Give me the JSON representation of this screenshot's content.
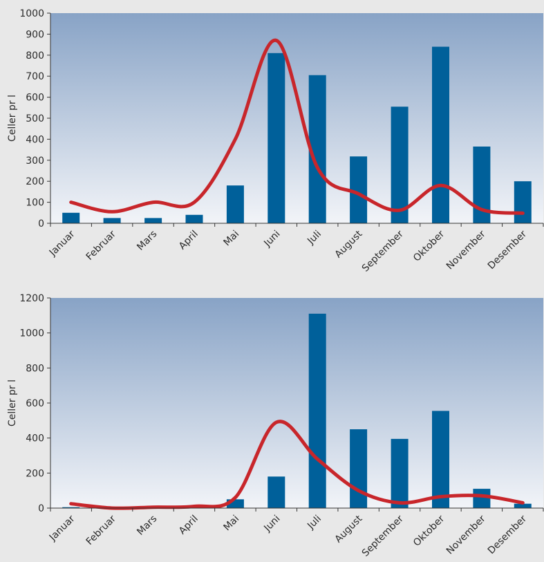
{
  "colors": {
    "bar": "#00609a",
    "line": "#c8262b",
    "panel_top": "#88a3c6",
    "panel_bottom": "#f2f4f8",
    "page_background": "#e8e8e8",
    "axis": "#333333"
  },
  "chart_data": [
    {
      "type": "bar",
      "title": "",
      "xlabel": "",
      "ylabel": "Celler pr l",
      "ylim": [
        0,
        1000
      ],
      "yticks": [
        0,
        100,
        200,
        300,
        400,
        500,
        600,
        700,
        800,
        900,
        1000
      ],
      "ytick_labels": [
        "0",
        "100",
        "200",
        "300",
        "400",
        "500",
        "600",
        "700",
        "800",
        "900",
        "1000"
      ],
      "categories": [
        "Januar",
        "Februar",
        "Mars",
        "April",
        "Mai",
        "Juni",
        "Juli",
        "August",
        "September",
        "Oktober",
        "November",
        "Desember"
      ],
      "grid": false,
      "legend": "none",
      "series": [
        {
          "type": "bar",
          "values": [
            50,
            25,
            25,
            40,
            180,
            810,
            705,
            318,
            555,
            840,
            365,
            200
          ]
        },
        {
          "type": "line",
          "smooth": true,
          "values": [
            100,
            55,
            100,
            100,
            400,
            870,
            265,
            140,
            62,
            180,
            65,
            48
          ]
        }
      ]
    },
    {
      "type": "bar",
      "title": "",
      "xlabel": "",
      "ylabel": "Celler pr l",
      "ylim": [
        0,
        1200
      ],
      "yticks": [
        0,
        200,
        400,
        600,
        800,
        1000,
        1200
      ],
      "ytick_labels": [
        "0",
        "200",
        "400",
        "600",
        "800",
        "1000",
        "1200"
      ],
      "categories": [
        "Januar",
        "Februar",
        "Mars",
        "April",
        "Mai",
        "Juni",
        "Juli",
        "August",
        "September",
        "Oktober",
        "November",
        "Desember"
      ],
      "grid": false,
      "legend": "none",
      "series": [
        {
          "type": "bar",
          "values": [
            5,
            0,
            0,
            5,
            50,
            180,
            1110,
            450,
            395,
            555,
            110,
            25
          ]
        },
        {
          "type": "line",
          "smooth": true,
          "values": [
            25,
            0,
            5,
            10,
            60,
            490,
            280,
            100,
            30,
            65,
            70,
            30
          ]
        }
      ]
    }
  ]
}
